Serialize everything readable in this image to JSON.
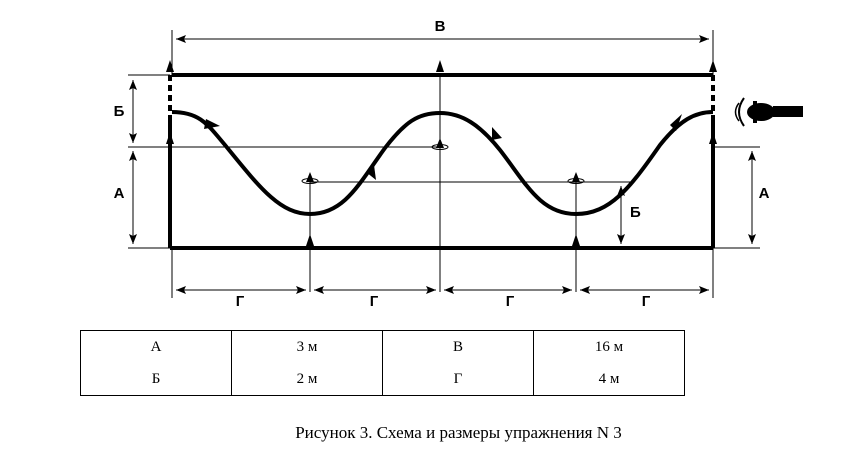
{
  "labels": {
    "top_width": "В",
    "left_b": "Б",
    "left_a": "А",
    "right_a": "А",
    "inner_b": "Б",
    "g1": "Г",
    "g2": "Г",
    "g3": "Г",
    "g4": "Г"
  },
  "table": {
    "rows": [
      [
        "А",
        "3 м",
        "В",
        "16 м"
      ],
      [
        "Б",
        "2 м",
        "Г",
        "4 м"
      ]
    ]
  },
  "caption": "Рисунок 3. Схема и размеры упражнения N 3",
  "icons": [
    "cone-marker",
    "motorcycle-icon",
    "arrowhead"
  ]
}
